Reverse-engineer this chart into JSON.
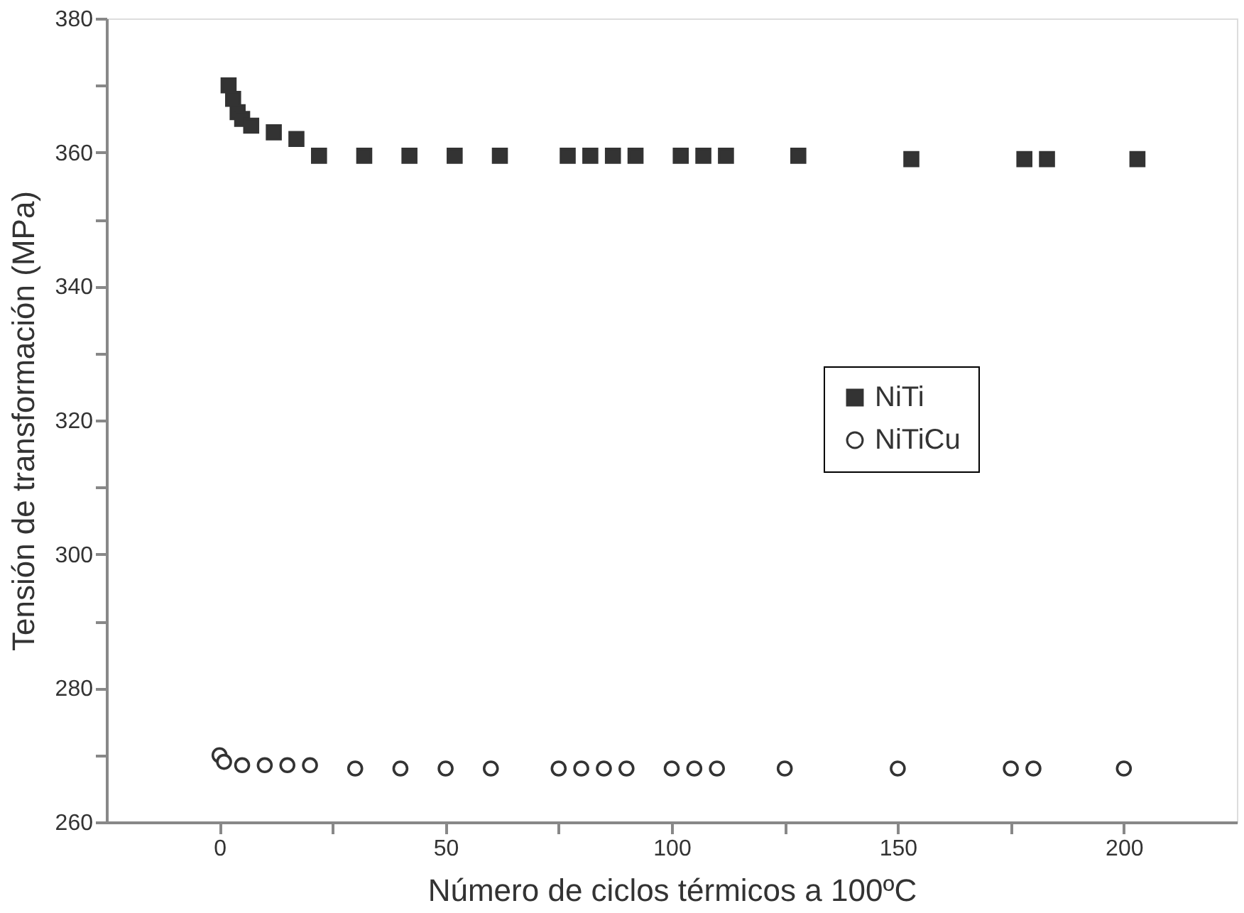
{
  "chart_data": {
    "type": "scatter",
    "xlabel": "Número de ciclos térmicos a 100ºC",
    "ylabel": "Tensión de transformación (MPa)",
    "xlim": [
      -25,
      225
    ],
    "ylim": [
      260,
      380
    ],
    "xticks": [
      0,
      {
        "value": 25,
        "label": null
      },
      50,
      {
        "value": 75,
        "label": null
      },
      100,
      {
        "value": 125,
        "label": null
      },
      150,
      {
        "value": 175,
        "label": null
      },
      200
    ],
    "yticks": [
      260,
      {
        "value": 270,
        "label": null
      },
      280,
      {
        "value": 290,
        "label": null
      },
      300,
      {
        "value": 310,
        "label": null
      },
      320,
      {
        "value": 330,
        "label": null
      },
      340,
      {
        "value": 350,
        "label": null
      },
      360,
      {
        "value": 370,
        "label": null
      },
      380
    ],
    "legend": "right",
    "grid": false,
    "series": [
      {
        "name": "NiTi",
        "color": "#333333",
        "marker": "square",
        "x": [
          2,
          3,
          4,
          5,
          6,
          7,
          12,
          17,
          22,
          32,
          42,
          52,
          62,
          77,
          82,
          87,
          92,
          102,
          107,
          112,
          128,
          153,
          178,
          183,
          203
        ],
        "values": [
          370,
          368,
          366,
          365,
          null,
          364,
          363,
          362,
          359.5,
          359.5,
          359.5,
          359.5,
          359.5,
          359.5,
          359.5,
          359.5,
          359.5,
          359.5,
          359.5,
          359.5,
          359.5,
          359,
          359,
          359,
          359
        ]
      },
      {
        "name": "NiTiCu",
        "color": "#333333",
        "marker": "circle",
        "x": [
          0,
          1,
          5,
          10,
          15,
          20,
          30,
          40,
          50,
          60,
          75,
          80,
          85,
          90,
          100,
          105,
          110,
          125,
          150,
          175,
          180,
          200
        ],
        "values": [
          270,
          269,
          268.5,
          268.5,
          268.5,
          268.5,
          268,
          268,
          268,
          268,
          268,
          268,
          268,
          268,
          268,
          268,
          268,
          268,
          268,
          268,
          268,
          268
        ]
      }
    ]
  }
}
